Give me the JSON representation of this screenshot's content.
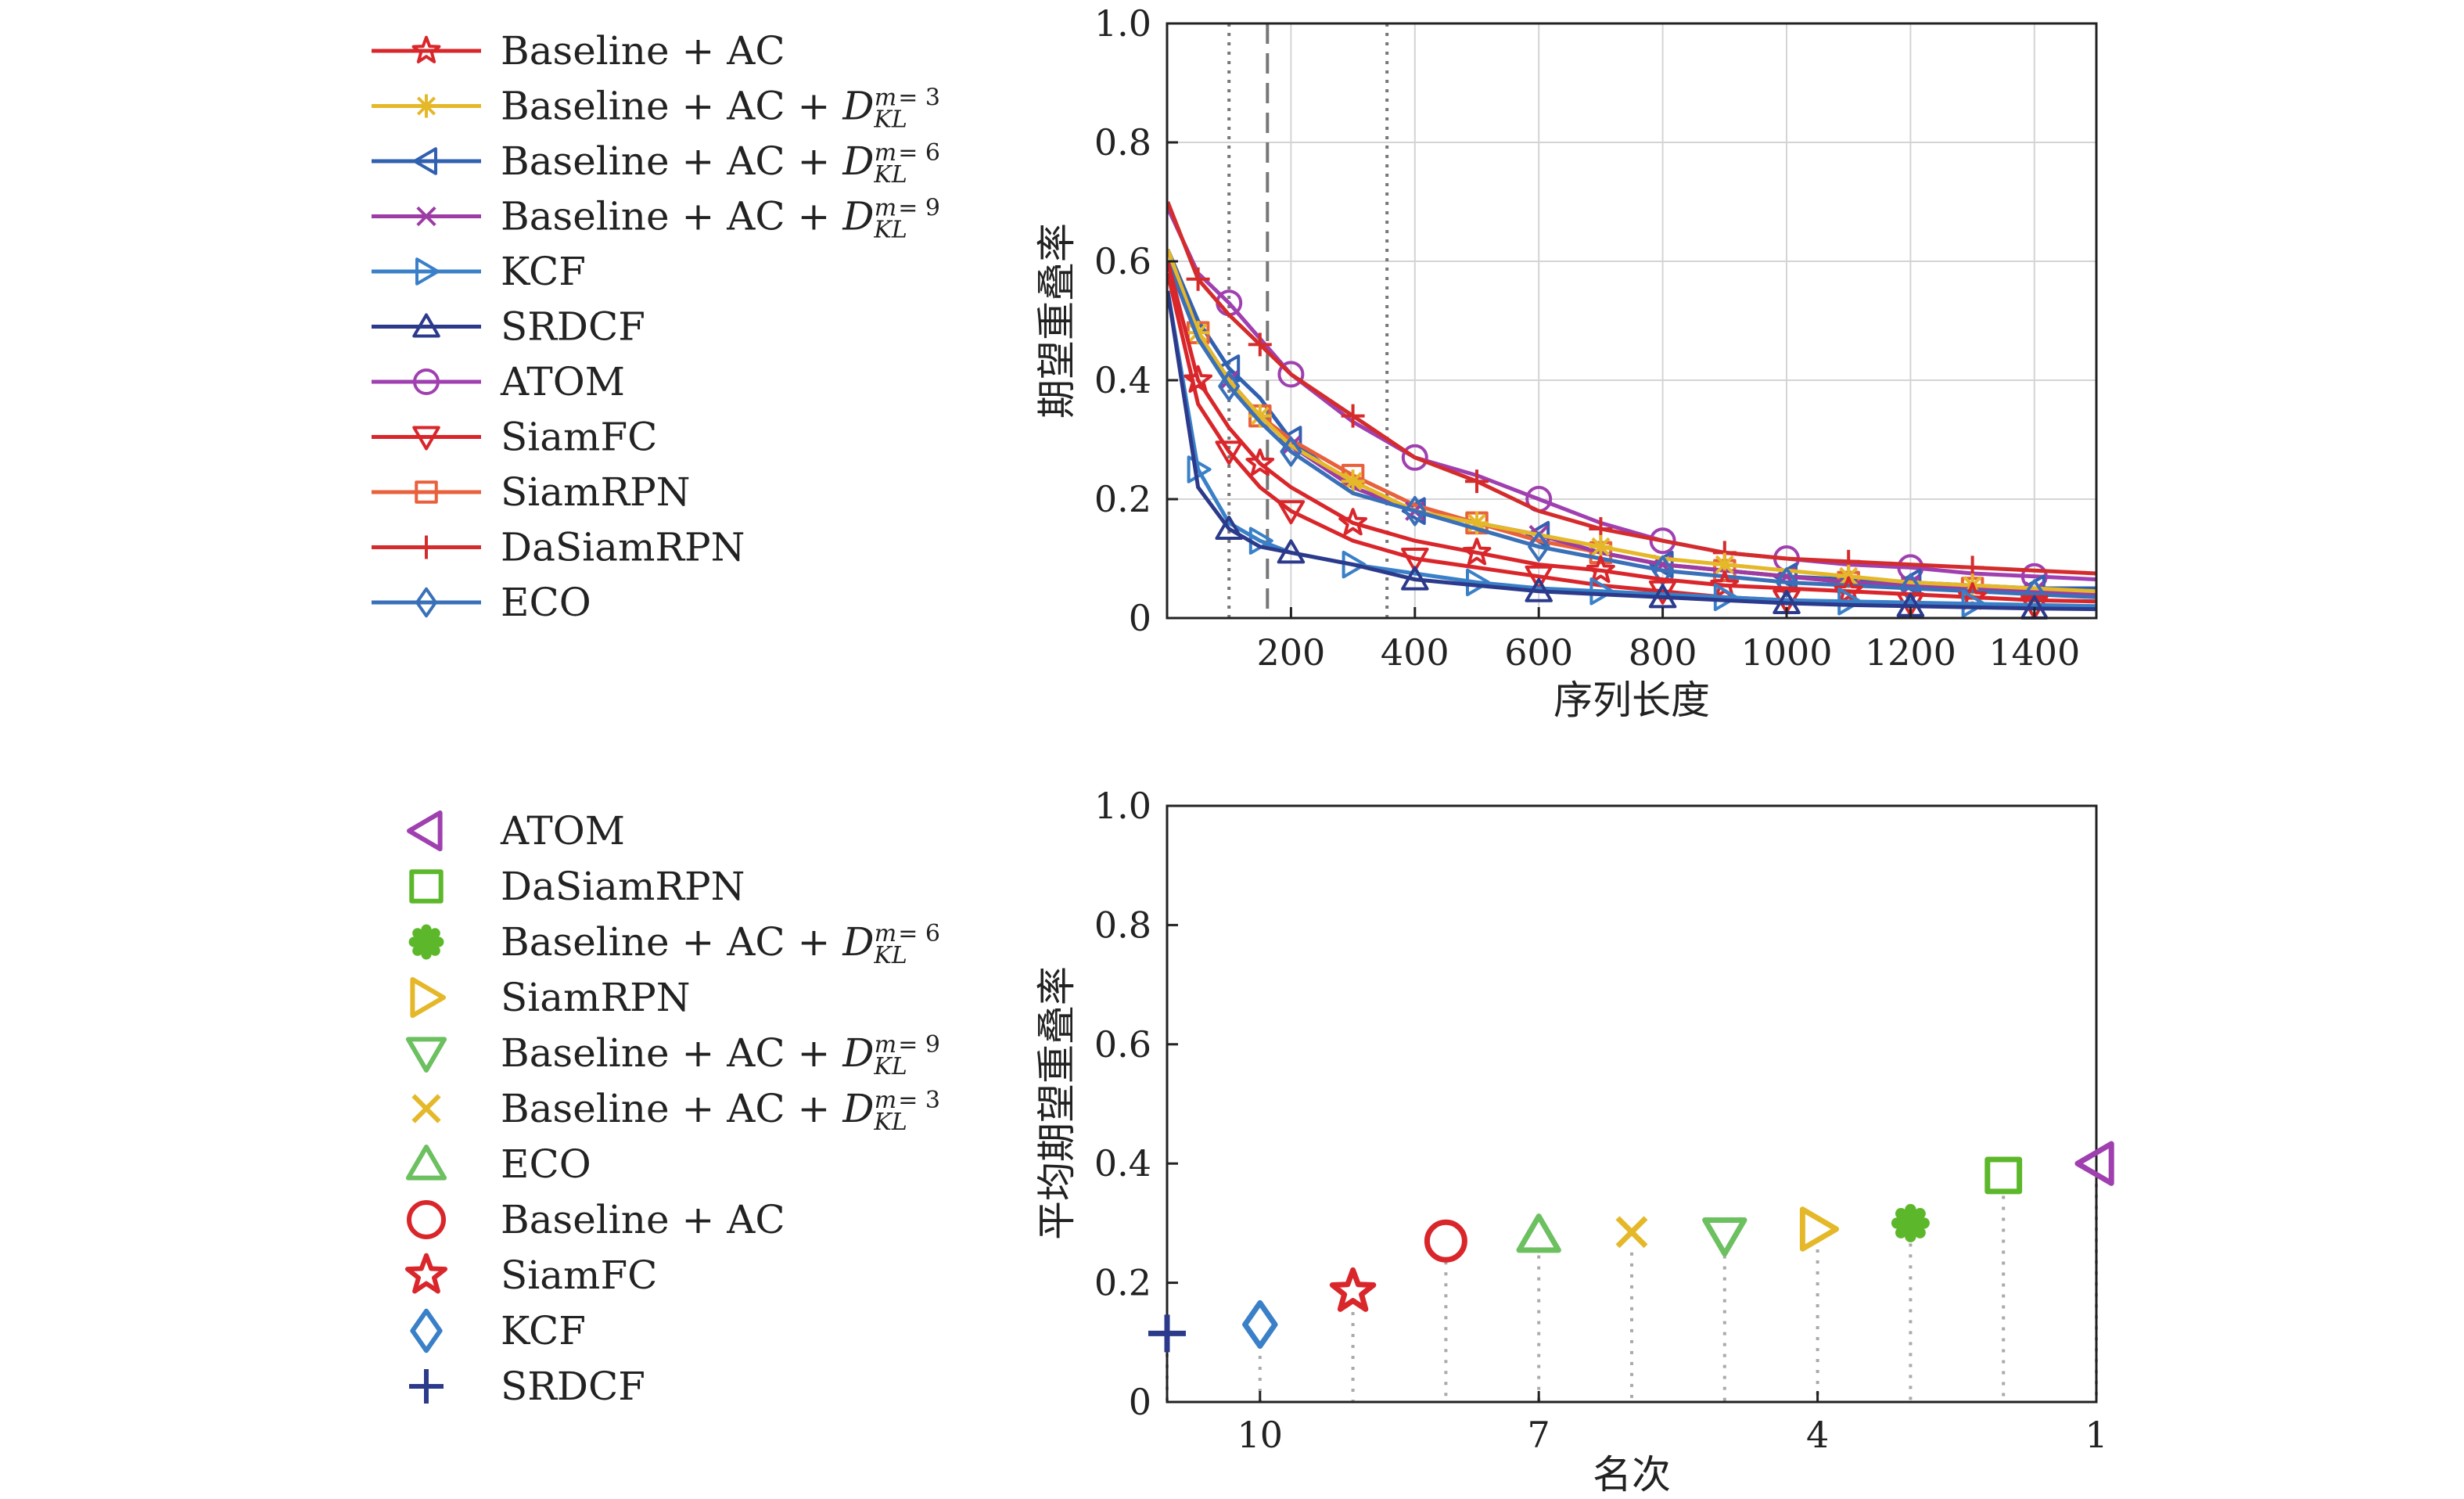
{
  "chart_data": [
    {
      "type": "line",
      "xlabel": "序列长度",
      "ylabel": "期望重叠率",
      "xlim": [
        0,
        1500
      ],
      "ylim": [
        0,
        1.0
      ],
      "xticks": [
        200,
        400,
        600,
        800,
        1000,
        1200,
        1400
      ],
      "xticklabels": [
        "200",
        "400",
        "600",
        "800",
        "1000",
        "1200",
        "1400"
      ],
      "yticks": [
        0,
        0.2,
        0.4,
        0.6,
        0.8,
        1.0
      ],
      "yticklabels": [
        "0",
        "0.2",
        "0.4",
        "0.6",
        "0.8",
        "1.0"
      ],
      "grid": true,
      "vlines": [
        100,
        162,
        355
      ],
      "legend": [
        {
          "pre": "Baseline + AC",
          "kl": "",
          "color": "#d9262b",
          "marker": "star"
        },
        {
          "pre": "Baseline + AC + ",
          "kl": "3",
          "color": "#e5b829",
          "marker": "asterisk"
        },
        {
          "pre": "Baseline + AC + ",
          "kl": "6",
          "color": "#3060b0",
          "marker": "tri-left"
        },
        {
          "pre": "Baseline + AC + ",
          "kl": "9",
          "color": "#9c3ca4",
          "marker": "x"
        },
        {
          "pre": "KCF",
          "kl": "",
          "color": "#3a80c8",
          "marker": "tri-right"
        },
        {
          "pre": "SRDCF",
          "kl": "",
          "color": "#2c3a8c",
          "marker": "tri-up"
        },
        {
          "pre": "ATOM",
          "kl": "",
          "color": "#a040b0",
          "marker": "circle"
        },
        {
          "pre": "SiamFC",
          "kl": "",
          "color": "#d9262b",
          "marker": "tri-down"
        },
        {
          "pre": "SiamRPN",
          "kl": "",
          "color": "#e8603c",
          "marker": "square"
        },
        {
          "pre": "DaSiamRPN",
          "kl": "",
          "color": "#d42c2c",
          "marker": "plus"
        },
        {
          "pre": "ECO",
          "kl": "",
          "color": "#3a70b8",
          "marker": "diamond"
        }
      ],
      "kl_label": {
        "base": "D",
        "sub": "KL",
        "sup": "m"
      },
      "series": [
        {
          "name": "ATOM",
          "color": "#a040b0",
          "marker": "circle",
          "x": [
            1,
            50,
            100,
            150,
            200,
            300,
            400,
            500,
            600,
            700,
            800,
            900,
            1000,
            1100,
            1200,
            1300,
            1400,
            1500
          ],
          "y": [
            0.69,
            0.58,
            0.53,
            0.47,
            0.41,
            0.33,
            0.27,
            0.24,
            0.2,
            0.16,
            0.13,
            0.11,
            0.1,
            0.09,
            0.085,
            0.075,
            0.07,
            0.065
          ]
        },
        {
          "name": "DaSiamRPN",
          "color": "#d42c2c",
          "marker": "plus",
          "x": [
            1,
            50,
            100,
            150,
            200,
            300,
            400,
            500,
            600,
            700,
            800,
            900,
            1000,
            1100,
            1200,
            1300,
            1400,
            1500
          ],
          "y": [
            0.7,
            0.57,
            0.51,
            0.46,
            0.41,
            0.34,
            0.27,
            0.23,
            0.18,
            0.15,
            0.13,
            0.11,
            0.1,
            0.095,
            0.09,
            0.085,
            0.08,
            0.075
          ]
        },
        {
          "name": "Baseline + AC + D_KL^m=6",
          "color": "#3060b0",
          "marker": "tri-left",
          "x": [
            1,
            50,
            100,
            150,
            200,
            300,
            400,
            500,
            600,
            700,
            800,
            900,
            1000,
            1100,
            1200,
            1300,
            1400,
            1500
          ],
          "y": [
            0.62,
            0.5,
            0.42,
            0.37,
            0.3,
            0.22,
            0.18,
            0.16,
            0.14,
            0.11,
            0.09,
            0.08,
            0.07,
            0.065,
            0.06,
            0.055,
            0.05,
            0.05
          ]
        },
        {
          "name": "SiamRPN",
          "color": "#e8603c",
          "marker": "square",
          "x": [
            1,
            50,
            100,
            150,
            200,
            300,
            400,
            500,
            600,
            700,
            800,
            900,
            1000,
            1100,
            1200,
            1300,
            1400,
            1500
          ],
          "y": [
            0.62,
            0.48,
            0.4,
            0.34,
            0.3,
            0.24,
            0.19,
            0.16,
            0.13,
            0.11,
            0.09,
            0.08,
            0.07,
            0.06,
            0.055,
            0.05,
            0.045,
            0.04
          ]
        },
        {
          "name": "Baseline + AC + D_KL^m=9",
          "color": "#9c3ca4",
          "marker": "x",
          "x": [
            1,
            50,
            100,
            150,
            200,
            300,
            400,
            500,
            600,
            700,
            800,
            900,
            1000,
            1100,
            1200,
            1300,
            1400,
            1500
          ],
          "y": [
            0.62,
            0.48,
            0.4,
            0.34,
            0.29,
            0.22,
            0.18,
            0.16,
            0.14,
            0.11,
            0.09,
            0.08,
            0.07,
            0.06,
            0.055,
            0.05,
            0.045,
            0.04
          ]
        },
        {
          "name": "Baseline + AC + D_KL^m=3",
          "color": "#e5b829",
          "marker": "asterisk",
          "x": [
            1,
            50,
            100,
            150,
            200,
            300,
            400,
            500,
            600,
            700,
            800,
            900,
            1000,
            1100,
            1200,
            1300,
            1400,
            1500
          ],
          "y": [
            0.62,
            0.48,
            0.4,
            0.34,
            0.29,
            0.23,
            0.18,
            0.16,
            0.14,
            0.12,
            0.1,
            0.09,
            0.08,
            0.07,
            0.06,
            0.055,
            0.05,
            0.045
          ]
        },
        {
          "name": "ECO",
          "color": "#3a70b8",
          "marker": "diamond",
          "x": [
            1,
            50,
            100,
            150,
            200,
            300,
            400,
            500,
            600,
            700,
            800,
            900,
            1000,
            1100,
            1200,
            1300,
            1400,
            1500
          ],
          "y": [
            0.6,
            0.47,
            0.39,
            0.33,
            0.28,
            0.21,
            0.18,
            0.15,
            0.12,
            0.1,
            0.08,
            0.07,
            0.06,
            0.055,
            0.05,
            0.045,
            0.04,
            0.035
          ]
        },
        {
          "name": "Baseline + AC",
          "color": "#d9262b",
          "marker": "star",
          "x": [
            1,
            50,
            100,
            150,
            200,
            300,
            400,
            500,
            600,
            700,
            800,
            900,
            1000,
            1100,
            1200,
            1300,
            1400,
            1500
          ],
          "y": [
            0.6,
            0.4,
            0.32,
            0.26,
            0.22,
            0.16,
            0.13,
            0.11,
            0.09,
            0.08,
            0.065,
            0.055,
            0.05,
            0.045,
            0.04,
            0.035,
            0.03,
            0.028
          ]
        },
        {
          "name": "SiamFC",
          "color": "#d9262b",
          "marker": "tri-down",
          "x": [
            1,
            50,
            100,
            150,
            200,
            300,
            400,
            500,
            600,
            700,
            800,
            900,
            1000,
            1100,
            1200,
            1300,
            1400,
            1500
          ],
          "y": [
            0.58,
            0.36,
            0.28,
            0.22,
            0.18,
            0.13,
            0.1,
            0.085,
            0.07,
            0.055,
            0.045,
            0.035,
            0.03,
            0.027,
            0.025,
            0.022,
            0.02,
            0.018
          ]
        },
        {
          "name": "KCF",
          "color": "#3a80c8",
          "marker": "tri-right",
          "x": [
            1,
            50,
            100,
            150,
            200,
            300,
            400,
            500,
            600,
            700,
            800,
            900,
            1000,
            1100,
            1200,
            1300,
            1400,
            1500
          ],
          "y": [
            0.55,
            0.25,
            0.16,
            0.13,
            0.11,
            0.09,
            0.075,
            0.06,
            0.05,
            0.045,
            0.04,
            0.035,
            0.03,
            0.028,
            0.026,
            0.024,
            0.022,
            0.02
          ]
        },
        {
          "name": "SRDCF",
          "color": "#2c3a8c",
          "marker": "tri-up",
          "x": [
            1,
            50,
            100,
            150,
            200,
            300,
            400,
            500,
            600,
            700,
            800,
            900,
            1000,
            1100,
            1200,
            1300,
            1400,
            1500
          ],
          "y": [
            0.55,
            0.22,
            0.15,
            0.12,
            0.11,
            0.09,
            0.065,
            0.055,
            0.045,
            0.04,
            0.035,
            0.03,
            0.025,
            0.022,
            0.02,
            0.018,
            0.016,
            0.015
          ]
        }
      ]
    },
    {
      "type": "scatter",
      "xlabel": "名次",
      "ylabel": "平均期望重叠率",
      "xlim": [
        11,
        1
      ],
      "ylim": [
        0,
        1.0
      ],
      "xticks": [
        10,
        7,
        4,
        1
      ],
      "xticklabels": [
        "10",
        "7",
        "4",
        "1"
      ],
      "yticks": [
        0,
        0.2,
        0.4,
        0.6,
        0.8,
        1.0
      ],
      "yticklabels": [
        "0",
        "0.2",
        "0.4",
        "0.6",
        "0.8",
        "1.0"
      ],
      "grid": false,
      "legend": [
        {
          "pre": "ATOM",
          "kl": "",
          "color": "#a040b0",
          "marker": "tri-left"
        },
        {
          "pre": "DaSiamRPN",
          "kl": "",
          "color": "#5cb82a",
          "marker": "square"
        },
        {
          "pre": "Baseline + AC + ",
          "kl": "6",
          "color": "#5cb82a",
          "marker": "gear"
        },
        {
          "pre": "SiamRPN",
          "kl": "",
          "color": "#e5b829",
          "marker": "tri-right"
        },
        {
          "pre": "Baseline + AC + ",
          "kl": "9",
          "color": "#6cc060",
          "marker": "tri-down"
        },
        {
          "pre": "Baseline + AC + ",
          "kl": "3",
          "color": "#e5b829",
          "marker": "x"
        },
        {
          "pre": "ECO",
          "kl": "",
          "color": "#6cc060",
          "marker": "tri-up"
        },
        {
          "pre": "Baseline + AC",
          "kl": "",
          "color": "#d9262b",
          "marker": "circle"
        },
        {
          "pre": "SiamFC",
          "kl": "",
          "color": "#d9262b",
          "marker": "star"
        },
        {
          "pre": "KCF",
          "kl": "",
          "color": "#3a80c8",
          "marker": "diamond"
        },
        {
          "pre": "SRDCF",
          "kl": "",
          "color": "#2c3a8c",
          "marker": "plus"
        }
      ],
      "kl_label": {
        "base": "D",
        "sub": "KL",
        "sup": "m"
      },
      "points": [
        {
          "name": "ATOM",
          "rank": 1,
          "value": 0.4,
          "color": "#a040b0",
          "marker": "tri-left"
        },
        {
          "name": "DaSiamRPN",
          "rank": 2,
          "value": 0.38,
          "color": "#5cb82a",
          "marker": "square"
        },
        {
          "name": "Baseline + AC + D_KL^m=6",
          "rank": 3,
          "value": 0.3,
          "color": "#5cb82a",
          "marker": "gear"
        },
        {
          "name": "SiamRPN",
          "rank": 4,
          "value": 0.29,
          "color": "#e5b829",
          "marker": "tri-right"
        },
        {
          "name": "Baseline + AC + D_KL^m=9",
          "rank": 5,
          "value": 0.28,
          "color": "#6cc060",
          "marker": "tri-down"
        },
        {
          "name": "Baseline + AC + D_KL^m=3",
          "rank": 6,
          "value": 0.285,
          "color": "#e5b829",
          "marker": "x"
        },
        {
          "name": "ECO",
          "rank": 7,
          "value": 0.28,
          "color": "#6cc060",
          "marker": "tri-up"
        },
        {
          "name": "Baseline + AC",
          "rank": 8,
          "value": 0.27,
          "color": "#d9262b",
          "marker": "circle"
        },
        {
          "name": "SiamFC",
          "rank": 9,
          "value": 0.185,
          "color": "#d9262b",
          "marker": "star"
        },
        {
          "name": "KCF",
          "rank": 10,
          "value": 0.13,
          "color": "#3a80c8",
          "marker": "diamond"
        },
        {
          "name": "SRDCF",
          "rank": 11,
          "value": 0.115,
          "color": "#2c3a8c",
          "marker": "plus"
        }
      ]
    }
  ]
}
